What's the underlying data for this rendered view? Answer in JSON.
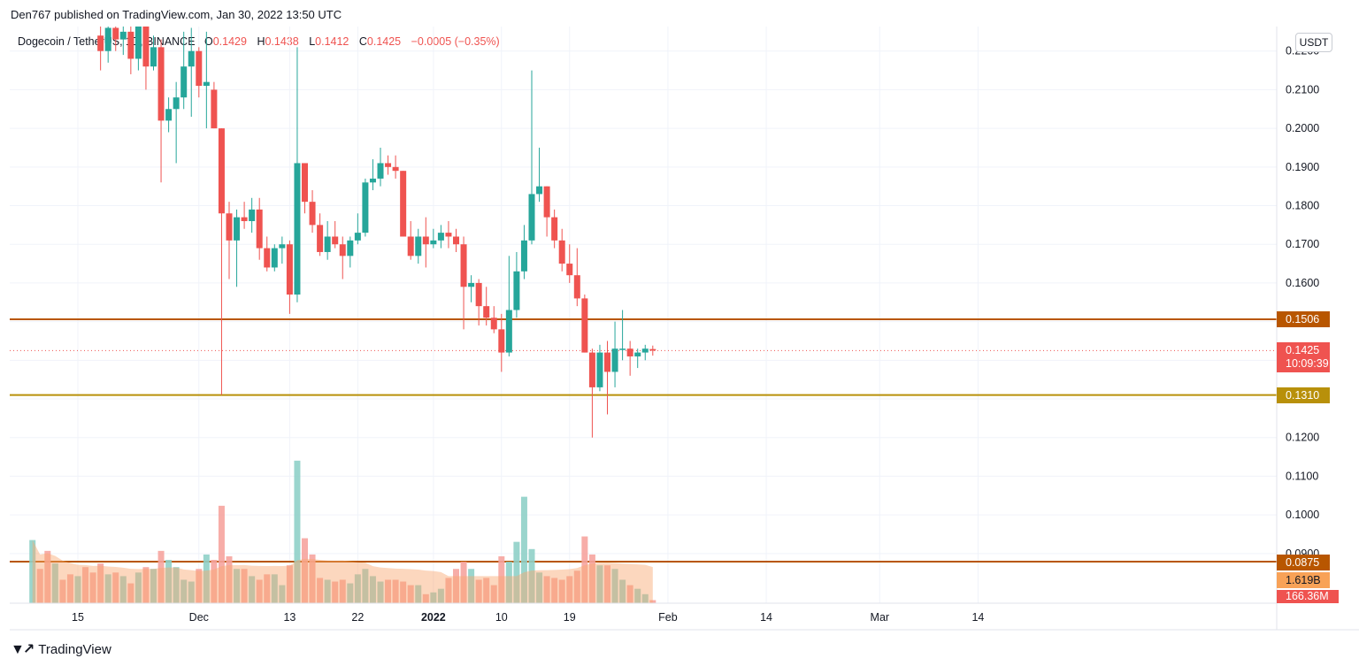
{
  "header": {
    "published": "Den767 published on TradingView.com, Jan 30, 2022 13:50 UTC"
  },
  "legend": {
    "symbol": "Dogecoin / TetherUS, 1D, BINANCE",
    "open_label": "O",
    "open": "0.1429",
    "high_label": "H",
    "high": "0.1438",
    "low_label": "L",
    "low": "0.1412",
    "close_label": "C",
    "close": "0.1425",
    "change": "−0.0005 (−0.35%)"
  },
  "unit": "USDT",
  "footer": {
    "brand": "TradingView",
    "logo_icon": "tradingview-logo-icon"
  },
  "colors": {
    "up": "#26a69a",
    "down": "#ef5350",
    "up_vol": "#8fd0c8",
    "down_vol": "#f6a49f",
    "level_upper": "#b85600",
    "level_lower": "#b8900a",
    "grid": "#f0f3fa"
  },
  "tags": {
    "resistance": "0.1506",
    "current_price": "0.1425",
    "countdown": "10:09:39",
    "support": "0.1310",
    "vol_level": "0.0875",
    "vol_ma": "1.619B",
    "vol_last": "166.36M"
  },
  "chart_data": {
    "type": "candlestick",
    "y_axis": {
      "ticks": [
        "0.2200",
        "0.2100",
        "0.2000",
        "0.1900",
        "0.1800",
        "0.1700",
        "0.1600",
        "0.1500",
        "0.1400",
        "0.1300",
        "0.1200",
        "0.1100",
        "0.1000",
        "0.0900"
      ],
      "range": [
        0.0875,
        0.2225
      ]
    },
    "x_axis": {
      "ticks": [
        {
          "label": "15",
          "date": "2021-11-15"
        },
        {
          "label": "Dec",
          "date": "2021-12-01"
        },
        {
          "label": "13",
          "date": "2021-12-13"
        },
        {
          "label": "22",
          "date": "2021-12-22"
        },
        {
          "label": "2022",
          "date": "2022-01-01"
        },
        {
          "label": "10",
          "date": "2022-01-10"
        },
        {
          "label": "19",
          "date": "2022-01-19"
        },
        {
          "label": "Feb",
          "date": "2022-02-01"
        },
        {
          "label": "14",
          "date": "2022-02-14"
        },
        {
          "label": "Mar",
          "date": "2022-03-01"
        },
        {
          "label": "14",
          "date": "2022-03-14"
        }
      ]
    },
    "levels": [
      {
        "value": 0.1506,
        "color": "#b85600"
      },
      {
        "value": 0.131,
        "color": "#b8900a"
      },
      {
        "value": 0.0875,
        "color": "#b85600"
      }
    ],
    "current_price": 0.1425,
    "candles": [
      {
        "date": "2021-11-18",
        "o": 0.224,
        "h": 0.229,
        "l": 0.215,
        "c": 0.22
      },
      {
        "date": "2021-11-19",
        "o": 0.22,
        "h": 0.23,
        "l": 0.217,
        "c": 0.226
      },
      {
        "date": "2021-11-20",
        "o": 0.226,
        "h": 0.233,
        "l": 0.22,
        "c": 0.223
      },
      {
        "date": "2021-11-21",
        "o": 0.223,
        "h": 0.23,
        "l": 0.219,
        "c": 0.225
      },
      {
        "date": "2021-11-22",
        "o": 0.225,
        "h": 0.231,
        "l": 0.214,
        "c": 0.218
      },
      {
        "date": "2021-11-23",
        "o": 0.218,
        "h": 0.229,
        "l": 0.215,
        "c": 0.227
      },
      {
        "date": "2021-11-24",
        "o": 0.227,
        "h": 0.232,
        "l": 0.21,
        "c": 0.216
      },
      {
        "date": "2021-11-25",
        "o": 0.216,
        "h": 0.224,
        "l": 0.215,
        "c": 0.221
      },
      {
        "date": "2021-11-26",
        "o": 0.221,
        "h": 0.223,
        "l": 0.186,
        "c": 0.202
      },
      {
        "date": "2021-11-27",
        "o": 0.202,
        "h": 0.208,
        "l": 0.199,
        "c": 0.205
      },
      {
        "date": "2021-11-28",
        "o": 0.205,
        "h": 0.212,
        "l": 0.191,
        "c": 0.208
      },
      {
        "date": "2021-11-29",
        "o": 0.208,
        "h": 0.225,
        "l": 0.205,
        "c": 0.216
      },
      {
        "date": "2021-11-30",
        "o": 0.216,
        "h": 0.226,
        "l": 0.203,
        "c": 0.22
      },
      {
        "date": "2021-12-01",
        "o": 0.22,
        "h": 0.221,
        "l": 0.208,
        "c": 0.211
      },
      {
        "date": "2021-12-02",
        "o": 0.211,
        "h": 0.225,
        "l": 0.2,
        "c": 0.212
      },
      {
        "date": "2021-12-03",
        "o": 0.21,
        "h": 0.212,
        "l": 0.2,
        "c": 0.2
      },
      {
        "date": "2021-12-04",
        "o": 0.2,
        "h": 0.2,
        "l": 0.131,
        "c": 0.178
      },
      {
        "date": "2021-12-05",
        "o": 0.178,
        "h": 0.181,
        "l": 0.161,
        "c": 0.171
      },
      {
        "date": "2021-12-06",
        "o": 0.171,
        "h": 0.179,
        "l": 0.159,
        "c": 0.177
      },
      {
        "date": "2021-12-07",
        "o": 0.177,
        "h": 0.181,
        "l": 0.174,
        "c": 0.176
      },
      {
        "date": "2021-12-08",
        "o": 0.176,
        "h": 0.182,
        "l": 0.173,
        "c": 0.179
      },
      {
        "date": "2021-12-09",
        "o": 0.179,
        "h": 0.182,
        "l": 0.166,
        "c": 0.169
      },
      {
        "date": "2021-12-10",
        "o": 0.169,
        "h": 0.172,
        "l": 0.163,
        "c": 0.164
      },
      {
        "date": "2021-12-11",
        "o": 0.164,
        "h": 0.17,
        "l": 0.163,
        "c": 0.169
      },
      {
        "date": "2021-12-12",
        "o": 0.169,
        "h": 0.172,
        "l": 0.165,
        "c": 0.17
      },
      {
        "date": "2021-12-13",
        "o": 0.17,
        "h": 0.171,
        "l": 0.152,
        "c": 0.157
      },
      {
        "date": "2021-12-14",
        "o": 0.157,
        "h": 0.221,
        "l": 0.155,
        "c": 0.191
      },
      {
        "date": "2021-12-15",
        "o": 0.191,
        "h": 0.191,
        "l": 0.178,
        "c": 0.181
      },
      {
        "date": "2021-12-16",
        "o": 0.181,
        "h": 0.184,
        "l": 0.173,
        "c": 0.175
      },
      {
        "date": "2021-12-17",
        "o": 0.175,
        "h": 0.178,
        "l": 0.167,
        "c": 0.168
      },
      {
        "date": "2021-12-18",
        "o": 0.168,
        "h": 0.176,
        "l": 0.166,
        "c": 0.172
      },
      {
        "date": "2021-12-19",
        "o": 0.172,
        "h": 0.176,
        "l": 0.169,
        "c": 0.17
      },
      {
        "date": "2021-12-20",
        "o": 0.17,
        "h": 0.172,
        "l": 0.161,
        "c": 0.167
      },
      {
        "date": "2021-12-21",
        "o": 0.167,
        "h": 0.172,
        "l": 0.164,
        "c": 0.171
      },
      {
        "date": "2021-12-22",
        "o": 0.171,
        "h": 0.178,
        "l": 0.17,
        "c": 0.173
      },
      {
        "date": "2021-12-23",
        "o": 0.173,
        "h": 0.187,
        "l": 0.172,
        "c": 0.186
      },
      {
        "date": "2021-12-24",
        "o": 0.186,
        "h": 0.192,
        "l": 0.184,
        "c": 0.187
      },
      {
        "date": "2021-12-25",
        "o": 0.187,
        "h": 0.195,
        "l": 0.185,
        "c": 0.191
      },
      {
        "date": "2021-12-26",
        "o": 0.191,
        "h": 0.193,
        "l": 0.188,
        "c": 0.19
      },
      {
        "date": "2021-12-27",
        "o": 0.19,
        "h": 0.193,
        "l": 0.187,
        "c": 0.189
      },
      {
        "date": "2021-12-28",
        "o": 0.189,
        "h": 0.189,
        "l": 0.172,
        "c": 0.172
      },
      {
        "date": "2021-12-29",
        "o": 0.172,
        "h": 0.176,
        "l": 0.166,
        "c": 0.167
      },
      {
        "date": "2021-12-30",
        "o": 0.167,
        "h": 0.174,
        "l": 0.165,
        "c": 0.172
      },
      {
        "date": "2021-12-31",
        "o": 0.172,
        "h": 0.177,
        "l": 0.164,
        "c": 0.17
      },
      {
        "date": "2022-01-01",
        "o": 0.17,
        "h": 0.174,
        "l": 0.169,
        "c": 0.171
      },
      {
        "date": "2022-01-02",
        "o": 0.171,
        "h": 0.175,
        "l": 0.169,
        "c": 0.173
      },
      {
        "date": "2022-01-03",
        "o": 0.173,
        "h": 0.176,
        "l": 0.169,
        "c": 0.172
      },
      {
        "date": "2022-01-04",
        "o": 0.172,
        "h": 0.174,
        "l": 0.168,
        "c": 0.17
      },
      {
        "date": "2022-01-05",
        "o": 0.17,
        "h": 0.172,
        "l": 0.148,
        "c": 0.159
      },
      {
        "date": "2022-01-06",
        "o": 0.159,
        "h": 0.162,
        "l": 0.155,
        "c": 0.16
      },
      {
        "date": "2022-01-07",
        "o": 0.16,
        "h": 0.161,
        "l": 0.149,
        "c": 0.154
      },
      {
        "date": "2022-01-08",
        "o": 0.154,
        "h": 0.159,
        "l": 0.149,
        "c": 0.151
      },
      {
        "date": "2022-01-09",
        "o": 0.151,
        "h": 0.154,
        "l": 0.147,
        "c": 0.148
      },
      {
        "date": "2022-01-10",
        "o": 0.148,
        "h": 0.152,
        "l": 0.137,
        "c": 0.142
      },
      {
        "date": "2022-01-11",
        "o": 0.142,
        "h": 0.167,
        "l": 0.141,
        "c": 0.153
      },
      {
        "date": "2022-01-12",
        "o": 0.153,
        "h": 0.168,
        "l": 0.151,
        "c": 0.163
      },
      {
        "date": "2022-01-13",
        "o": 0.163,
        "h": 0.175,
        "l": 0.161,
        "c": 0.171
      },
      {
        "date": "2022-01-14",
        "o": 0.171,
        "h": 0.215,
        "l": 0.17,
        "c": 0.183
      },
      {
        "date": "2022-01-15",
        "o": 0.183,
        "h": 0.195,
        "l": 0.181,
        "c": 0.185
      },
      {
        "date": "2022-01-16",
        "o": 0.185,
        "h": 0.185,
        "l": 0.172,
        "c": 0.177
      },
      {
        "date": "2022-01-17",
        "o": 0.177,
        "h": 0.179,
        "l": 0.169,
        "c": 0.171
      },
      {
        "date": "2022-01-18",
        "o": 0.171,
        "h": 0.174,
        "l": 0.163,
        "c": 0.165
      },
      {
        "date": "2022-01-19",
        "o": 0.165,
        "h": 0.17,
        "l": 0.16,
        "c": 0.162
      },
      {
        "date": "2022-01-20",
        "o": 0.162,
        "h": 0.169,
        "l": 0.154,
        "c": 0.156
      },
      {
        "date": "2022-01-21",
        "o": 0.156,
        "h": 0.157,
        "l": 0.142,
        "c": 0.142
      },
      {
        "date": "2022-01-22",
        "o": 0.142,
        "h": 0.143,
        "l": 0.12,
        "c": 0.133
      },
      {
        "date": "2022-01-23",
        "o": 0.133,
        "h": 0.144,
        "l": 0.132,
        "c": 0.142
      },
      {
        "date": "2022-01-24",
        "o": 0.142,
        "h": 0.145,
        "l": 0.126,
        "c": 0.137
      },
      {
        "date": "2022-01-25",
        "o": 0.137,
        "h": 0.15,
        "l": 0.133,
        "c": 0.143
      },
      {
        "date": "2022-01-26",
        "o": 0.143,
        "h": 0.153,
        "l": 0.14,
        "c": 0.143
      },
      {
        "date": "2022-01-27",
        "o": 0.143,
        "h": 0.145,
        "l": 0.136,
        "c": 0.141
      },
      {
        "date": "2022-01-28",
        "o": 0.141,
        "h": 0.143,
        "l": 0.138,
        "c": 0.142
      },
      {
        "date": "2022-01-29",
        "o": 0.142,
        "h": 0.144,
        "l": 0.14,
        "c": 0.143
      },
      {
        "date": "2022-01-30",
        "o": 0.1429,
        "h": 0.1438,
        "l": 0.1412,
        "c": 0.1425
      }
    ],
    "volume": {
      "unit": "USDT",
      "bars": [
        {
          "date": "2021-11-09",
          "v": 3.5
        },
        {
          "date": "2021-11-10",
          "v": 1.9
        },
        {
          "date": "2021-11-11",
          "v": 2.9
        },
        {
          "date": "2021-11-12",
          "v": 2.2
        },
        {
          "date": "2021-11-13",
          "v": 1.3
        },
        {
          "date": "2021-11-14",
          "v": 1.6
        },
        {
          "date": "2021-11-15",
          "v": 1.5
        },
        {
          "date": "2021-11-16",
          "v": 2.0
        },
        {
          "date": "2021-11-17",
          "v": 1.7
        },
        {
          "date": "2021-11-18",
          "v": 2.2
        },
        {
          "date": "2021-11-19",
          "v": 1.6
        },
        {
          "date": "2021-11-20",
          "v": 1.7
        },
        {
          "date": "2021-11-21",
          "v": 1.5
        },
        {
          "date": "2021-11-22",
          "v": 1.1
        },
        {
          "date": "2021-11-23",
          "v": 1.7
        },
        {
          "date": "2021-11-24",
          "v": 2.0
        },
        {
          "date": "2021-11-25",
          "v": 1.9
        },
        {
          "date": "2021-11-26",
          "v": 2.9
        },
        {
          "date": "2021-11-27",
          "v": 2.4
        },
        {
          "date": "2021-11-28",
          "v": 2.0
        },
        {
          "date": "2021-11-29",
          "v": 1.3
        },
        {
          "date": "2021-11-30",
          "v": 1.2
        },
        {
          "date": "2021-12-01",
          "v": 1.9
        },
        {
          "date": "2021-12-02",
          "v": 2.7
        },
        {
          "date": "2021-12-03",
          "v": 2.4
        },
        {
          "date": "2021-12-04",
          "v": 5.4
        },
        {
          "date": "2021-12-05",
          "v": 2.6
        },
        {
          "date": "2021-12-06",
          "v": 1.9
        },
        {
          "date": "2021-12-07",
          "v": 1.9
        },
        {
          "date": "2021-12-08",
          "v": 1.5
        },
        {
          "date": "2021-12-09",
          "v": 1.3
        },
        {
          "date": "2021-12-10",
          "v": 1.6
        },
        {
          "date": "2021-12-11",
          "v": 1.6
        },
        {
          "date": "2021-12-12",
          "v": 1.0
        },
        {
          "date": "2021-12-13",
          "v": 2.1
        },
        {
          "date": "2021-12-14",
          "v": 7.9
        },
        {
          "date": "2021-12-15",
          "v": 3.6
        },
        {
          "date": "2021-12-16",
          "v": 2.7
        },
        {
          "date": "2021-12-17",
          "v": 1.4
        },
        {
          "date": "2021-12-18",
          "v": 1.3
        },
        {
          "date": "2021-12-19",
          "v": 1.2
        },
        {
          "date": "2021-12-20",
          "v": 1.3
        },
        {
          "date": "2021-12-21",
          "v": 1.1
        },
        {
          "date": "2021-12-22",
          "v": 1.6
        },
        {
          "date": "2021-12-23",
          "v": 1.9
        },
        {
          "date": "2021-12-24",
          "v": 1.5
        },
        {
          "date": "2021-12-25",
          "v": 1.2
        },
        {
          "date": "2021-12-26",
          "v": 1.3
        },
        {
          "date": "2021-12-27",
          "v": 1.3
        },
        {
          "date": "2021-12-28",
          "v": 1.2
        },
        {
          "date": "2021-12-29",
          "v": 1.0
        },
        {
          "date": "2021-12-30",
          "v": 1.0
        },
        {
          "date": "2021-12-31",
          "v": 0.5
        },
        {
          "date": "2022-01-01",
          "v": 0.6
        },
        {
          "date": "2022-01-02",
          "v": 0.8
        },
        {
          "date": "2022-01-03",
          "v": 1.4
        },
        {
          "date": "2022-01-04",
          "v": 1.9
        },
        {
          "date": "2022-01-05",
          "v": 2.3
        },
        {
          "date": "2022-01-06",
          "v": 1.9
        },
        {
          "date": "2022-01-07",
          "v": 1.3
        },
        {
          "date": "2022-01-08",
          "v": 1.4
        },
        {
          "date": "2022-01-09",
          "v": 1.0
        },
        {
          "date": "2022-01-10",
          "v": 2.6
        },
        {
          "date": "2022-01-11",
          "v": 2.3
        },
        {
          "date": "2022-01-12",
          "v": 3.4
        },
        {
          "date": "2022-01-13",
          "v": 5.9
        },
        {
          "date": "2022-01-14",
          "v": 3.0
        },
        {
          "date": "2022-01-15",
          "v": 1.7
        },
        {
          "date": "2022-01-16",
          "v": 1.5
        },
        {
          "date": "2022-01-17",
          "v": 1.4
        },
        {
          "date": "2022-01-18",
          "v": 1.3
        },
        {
          "date": "2022-01-19",
          "v": 1.5
        },
        {
          "date": "2022-01-20",
          "v": 1.8
        },
        {
          "date": "2022-01-21",
          "v": 3.7
        },
        {
          "date": "2022-01-22",
          "v": 2.7
        },
        {
          "date": "2022-01-23",
          "v": 2.1
        },
        {
          "date": "2022-01-24",
          "v": 2.1
        },
        {
          "date": "2022-01-25",
          "v": 1.9
        },
        {
          "date": "2022-01-26",
          "v": 1.3
        },
        {
          "date": "2022-01-27",
          "v": 1.0
        },
        {
          "date": "2022-01-28",
          "v": 0.8
        },
        {
          "date": "2022-01-29",
          "v": 0.5
        },
        {
          "date": "2022-01-30",
          "v": 0.17
        }
      ],
      "ma_level": 1.619
    }
  }
}
